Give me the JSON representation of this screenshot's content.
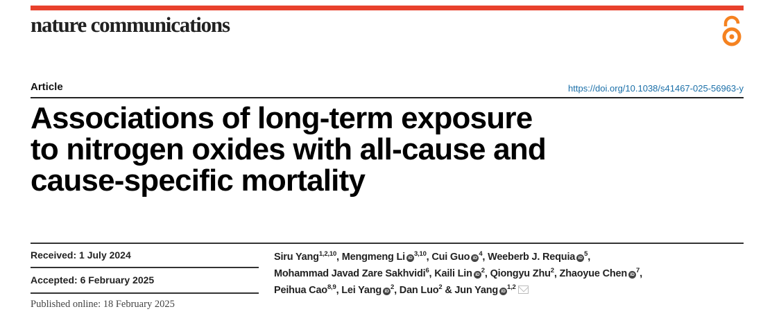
{
  "header": {
    "journal": "nature communications",
    "brand_color": "#e8412c",
    "open_access_icon": "open-access-icon",
    "open_access_color": "#f58220"
  },
  "article": {
    "type": "Article",
    "doi": "https://doi.org/10.1038/s41467-025-56963-y",
    "title_lines": [
      "Associations of long-term exposure",
      "to nitrogen oxides with all-cause and",
      "cause-specific mortality"
    ]
  },
  "dates": {
    "received": "Received: 1 July 2024",
    "accepted": "Accepted: 6 February 2025",
    "published": "Published online: 18 February 2025"
  },
  "authors": [
    {
      "name": "Siru Yang",
      "aff": "1,2,10",
      "orcid": false,
      "sep": ", ",
      "br": false
    },
    {
      "name": "Mengmeng Li",
      "aff": "3,10",
      "orcid": true,
      "sep": ", ",
      "br": false
    },
    {
      "name": "Cui Guo",
      "aff": "4",
      "orcid": true,
      "sep": ", ",
      "br": false
    },
    {
      "name": "Weeberb J. Requia",
      "aff": "5",
      "orcid": true,
      "sep": ",",
      "br": true
    },
    {
      "name": "Mohammad Javad Zare Sakhvidi",
      "aff": "6",
      "orcid": false,
      "sep": ", ",
      "br": false
    },
    {
      "name": "Kaili Lin",
      "aff": "2",
      "orcid": true,
      "sep": ", ",
      "br": false
    },
    {
      "name": "Qiongyu Zhu",
      "aff": "2",
      "orcid": false,
      "sep": ", ",
      "br": false
    },
    {
      "name": "Zhaoyue Chen",
      "aff": "7",
      "orcid": true,
      "sep": ",",
      "br": true
    },
    {
      "name": "Peihua Cao",
      "aff": "8,9",
      "orcid": false,
      "sep": ", ",
      "br": false
    },
    {
      "name": "Lei Yang",
      "aff": "2",
      "orcid": true,
      "sep": ", ",
      "br": false
    },
    {
      "name": "Dan Luo",
      "aff": "2",
      "orcid": false,
      "sep": " & ",
      "br": false
    },
    {
      "name": "Jun Yang",
      "aff": "1,2",
      "orcid": true,
      "sep": "",
      "br": false,
      "corresponding": true
    }
  ]
}
